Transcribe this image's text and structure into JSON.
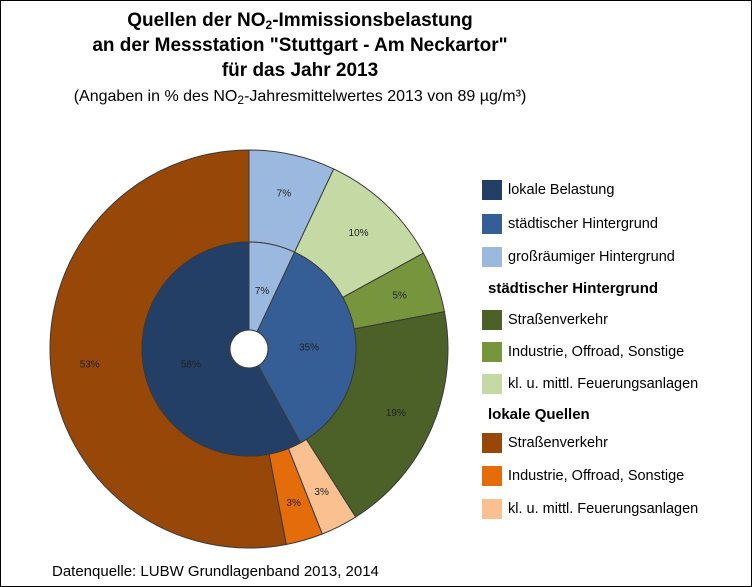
{
  "title_line1_pre": "Quellen der NO",
  "title_line1_sub": "2",
  "title_line1_post": "-Immissionsbelastung",
  "title_line2": "an der Messstation \"Stuttgart - Am Neckartor\"",
  "title_line3": "für das Jahr 2013",
  "subtitle_pre": "(Angaben in % des NO",
  "subtitle_sub": "2",
  "subtitle_post": "-Jahresmittelwertes 2013 von 89 µg/m³)",
  "source": "Datenquelle: LUBW Grundlagenband 2013, 2014",
  "legend": {
    "items": [
      {
        "label": "lokale Belastung",
        "color": "#243f66"
      },
      {
        "label": "städtischer Hintergrund",
        "color": "#345e95"
      },
      {
        "label": "großräumiger Hintergrund",
        "color": "#9bb8de"
      }
    ],
    "group_urban": {
      "heading": "städtischer Hintergrund",
      "items": [
        {
          "label": "Straßenverkehr",
          "color": "#4b6128"
        },
        {
          "label": "Industrie, Offroad, Sonstige",
          "color": "#77953c"
        },
        {
          "label": "kl. u. mittl. Feuerungsanlagen",
          "color": "#c5d9a4"
        }
      ]
    },
    "group_local": {
      "heading": "lokale Quellen",
      "items": [
        {
          "label": "Straßenverkehr",
          "color": "#974708"
        },
        {
          "label": "Industrie, Offroad, Sonstige",
          "color": "#e46c0a"
        },
        {
          "label": "kl. u. mittl. Feuerungsanlagen",
          "color": "#fac090"
        }
      ]
    }
  },
  "chart_data": {
    "type": "pie",
    "subtype": "nested donut",
    "inner_ring": [
      {
        "category": "großräumiger Hintergrund",
        "value": 7,
        "label": "7%",
        "color": "#9bb8de"
      },
      {
        "category": "städtischer Hintergrund",
        "value": 35,
        "label": "35%",
        "color": "#345e95"
      },
      {
        "category": "lokale Belastung",
        "value": 58,
        "label": "58%",
        "color": "#243f66"
      }
    ],
    "outer_ring": [
      {
        "category": "großräumiger Hintergrund",
        "value": 7,
        "label": "7%",
        "color": "#9bb8de"
      },
      {
        "category": "städtischer Hintergrund: kl. u. mittl. Feuerungsanlagen",
        "value": 10,
        "label": "10%",
        "color": "#c5d9a4"
      },
      {
        "category": "städtischer Hintergrund: Industrie, Offroad, Sonstige",
        "value": 5,
        "label": "5%",
        "color": "#77953c"
      },
      {
        "category": "städtischer Hintergrund: Straßenverkehr",
        "value": 19,
        "label": "19%",
        "color": "#4b6128"
      },
      {
        "category": "lokale Quellen: kl. u. mittl. Feuerungsanlagen",
        "value": 3,
        "label": "3%",
        "color": "#fac090"
      },
      {
        "category": "lokale Quellen: Industrie, Offroad, Sonstige",
        "value": 3,
        "label": "3%",
        "color": "#e46c0a"
      },
      {
        "category": "lokale Quellen: Straßenverkehr",
        "value": 53,
        "label": "53%",
        "color": "#974708"
      }
    ],
    "legend_position": "right"
  }
}
